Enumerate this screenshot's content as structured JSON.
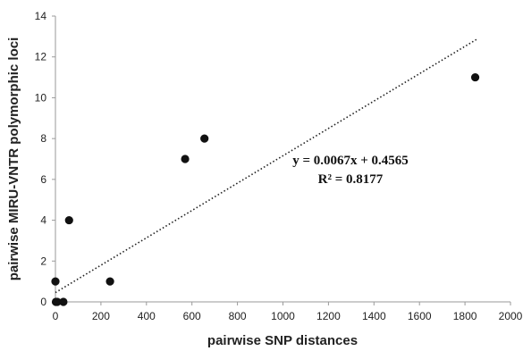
{
  "chart_data": {
    "type": "scatter",
    "title": "",
    "xlabel": "pairwise SNP distances",
    "ylabel": "pairwise MIRU-VNTR polymorphic loci",
    "xlim": [
      0,
      2000
    ],
    "ylim": [
      0,
      14
    ],
    "x_ticks": [
      "0",
      "200",
      "400",
      "600",
      "800",
      "1000",
      "1200",
      "1400",
      "1600",
      "1800",
      "2000"
    ],
    "y_ticks": [
      "0",
      "2",
      "4",
      "6",
      "8",
      "10",
      "12",
      "14"
    ],
    "points": [
      {
        "x": 0,
        "y": 1
      },
      {
        "x": 2,
        "y": 0
      },
      {
        "x": 8,
        "y": 0
      },
      {
        "x": 35,
        "y": 0
      },
      {
        "x": 60,
        "y": 4
      },
      {
        "x": 240,
        "y": 1
      },
      {
        "x": 570,
        "y": 7
      },
      {
        "x": 655,
        "y": 8
      },
      {
        "x": 1845,
        "y": 11
      }
    ],
    "trendline": {
      "slope": 0.0067,
      "intercept": 0.4565,
      "x_range": [
        0,
        1850
      ],
      "style": "dotted"
    },
    "annotations": {
      "equation": "y = 0.0067x + 0.4565",
      "r_squared": "R² = 0.8177"
    },
    "grid": false,
    "legend": "none",
    "colors": {
      "marker": "#111111",
      "trendline": "#222222",
      "axis": "#9a9a9a"
    }
  }
}
